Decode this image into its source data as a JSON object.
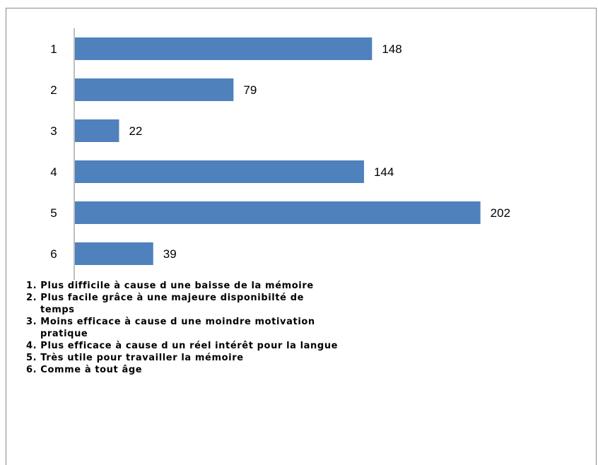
{
  "chart_data": {
    "type": "bar",
    "orientation": "horizontal",
    "categories": [
      "1",
      "2",
      "3",
      "4",
      "5",
      "6"
    ],
    "values": [
      148,
      79,
      22,
      144,
      202,
      39
    ],
    "data_labels": [
      "148",
      "79",
      "22",
      "144",
      "202",
      "39"
    ],
    "xlim": [
      0,
      210
    ],
    "grid": false,
    "bar_color": "#4F81BD",
    "legend_position": "bottom"
  },
  "legend": {
    "items": [
      {
        "first": "1. Plus difficile à cause d une baisse de la mémoire",
        "cont": ""
      },
      {
        "first": "2. Plus facile grâce à une majeure disponibilté de",
        "cont": "temps"
      },
      {
        "first": "3. Moins efficace à cause d une moindre motivation",
        "cont": "pratique"
      },
      {
        "first": "4. Plus efficace à cause d un réel intérêt pour la langue",
        "cont": ""
      },
      {
        "first": "5. Très utile pour travailler la mémoire",
        "cont": ""
      },
      {
        "first": "6. Comme à tout âge",
        "cont": ""
      }
    ]
  }
}
